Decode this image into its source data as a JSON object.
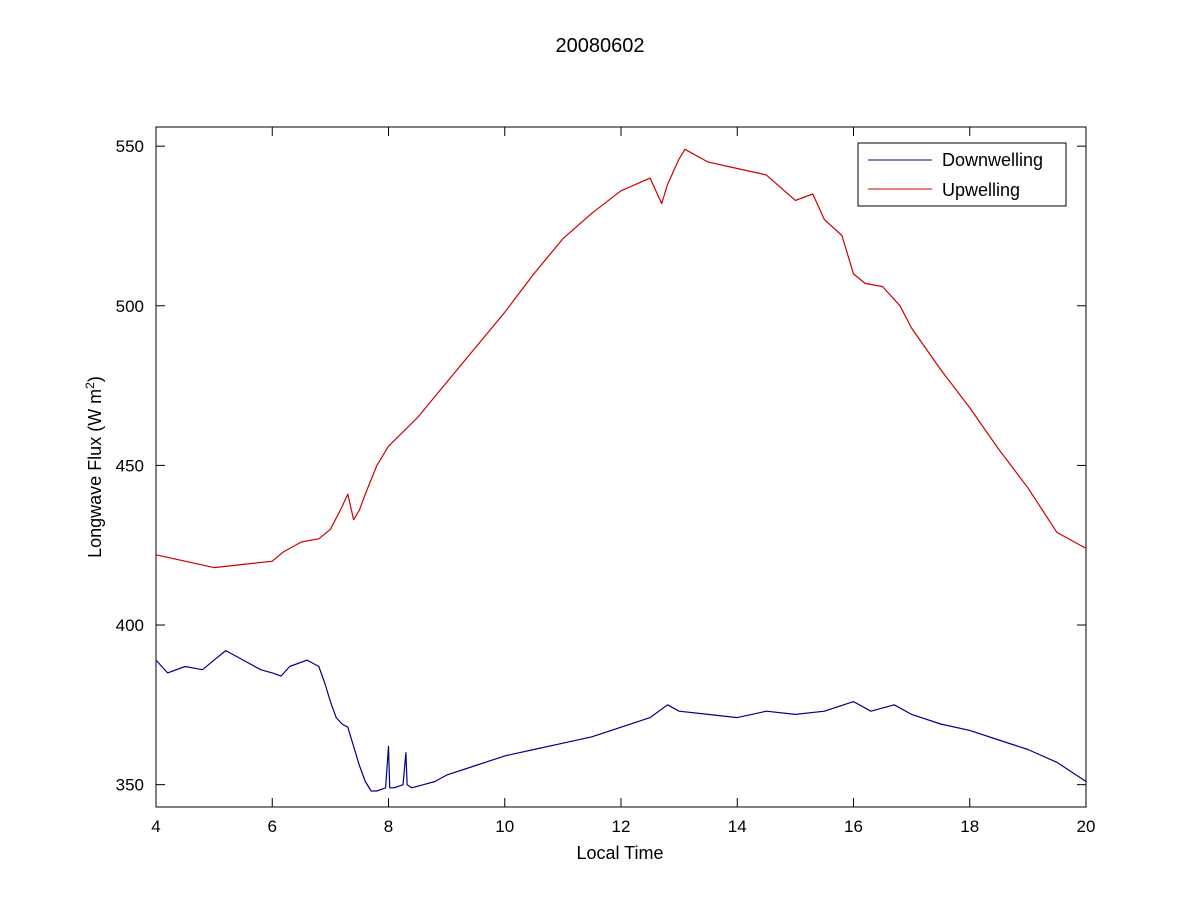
{
  "chart_data": {
    "type": "line",
    "title": "20080602",
    "xlabel": "Local Time",
    "ylabel": "Longwave Flux (W m",
    "ylabel_superscript": "2",
    "ylabel_close": ")",
    "xlim": [
      4,
      20
    ],
    "ylim": [
      343,
      556
    ],
    "xticks": [
      4,
      6,
      8,
      10,
      12,
      14,
      16,
      18,
      20
    ],
    "yticks": [
      350,
      400,
      450,
      500,
      550
    ],
    "grid": false,
    "legend_position": "top-right",
    "series": [
      {
        "name": "Downwelling",
        "color": "#00008b",
        "x": [
          4.0,
          4.2,
          4.5,
          4.8,
          5.0,
          5.2,
          5.5,
          5.8,
          6.0,
          6.15,
          6.3,
          6.6,
          6.8,
          6.9,
          7.0,
          7.1,
          7.2,
          7.3,
          7.4,
          7.5,
          7.6,
          7.7,
          7.8,
          7.95,
          8.0,
          8.02,
          8.1,
          8.25,
          8.3,
          8.32,
          8.4,
          8.6,
          8.8,
          9.0,
          9.5,
          10.0,
          10.5,
          11.0,
          11.5,
          12.0,
          12.5,
          12.8,
          13.0,
          13.5,
          14.0,
          14.5,
          15.0,
          15.5,
          16.0,
          16.3,
          16.7,
          17.0,
          17.5,
          18.0,
          18.5,
          19.0,
          19.5,
          20.0
        ],
        "y": [
          389,
          385,
          387,
          386,
          389,
          392,
          389,
          386,
          385,
          384,
          387,
          389,
          387,
          382,
          376,
          371,
          369,
          368,
          362,
          356,
          351,
          348,
          348,
          349,
          362,
          349,
          349,
          350,
          360,
          350,
          349,
          350,
          351,
          353,
          356,
          359,
          361,
          363,
          365,
          368,
          371,
          375,
          373,
          372,
          371,
          373,
          372,
          373,
          376,
          373,
          375,
          372,
          369,
          367,
          364,
          361,
          357,
          351
        ]
      },
      {
        "name": "Upwelling",
        "color": "#cc0000",
        "x": [
          4.0,
          4.5,
          5.0,
          5.5,
          6.0,
          6.2,
          6.5,
          6.8,
          7.0,
          7.2,
          7.3,
          7.4,
          7.5,
          7.6,
          7.8,
          8.0,
          8.5,
          9.0,
          9.5,
          10.0,
          10.5,
          11.0,
          11.5,
          12.0,
          12.5,
          12.7,
          12.8,
          13.0,
          13.1,
          13.5,
          14.0,
          14.5,
          15.0,
          15.3,
          15.5,
          15.8,
          16.0,
          16.2,
          16.5,
          16.8,
          17.0,
          17.5,
          18.0,
          18.5,
          19.0,
          19.5,
          20.0
        ],
        "y": [
          422,
          420,
          418,
          419,
          420,
          423,
          426,
          427,
          430,
          437,
          441,
          433,
          436,
          441,
          450,
          456,
          465,
          476,
          487,
          498,
          510,
          521,
          529,
          536,
          540,
          532,
          538,
          546,
          549,
          545,
          543,
          541,
          533,
          535,
          527,
          522,
          510,
          507,
          506,
          500,
          493,
          480,
          468,
          455,
          443,
          429,
          424
        ]
      }
    ]
  }
}
